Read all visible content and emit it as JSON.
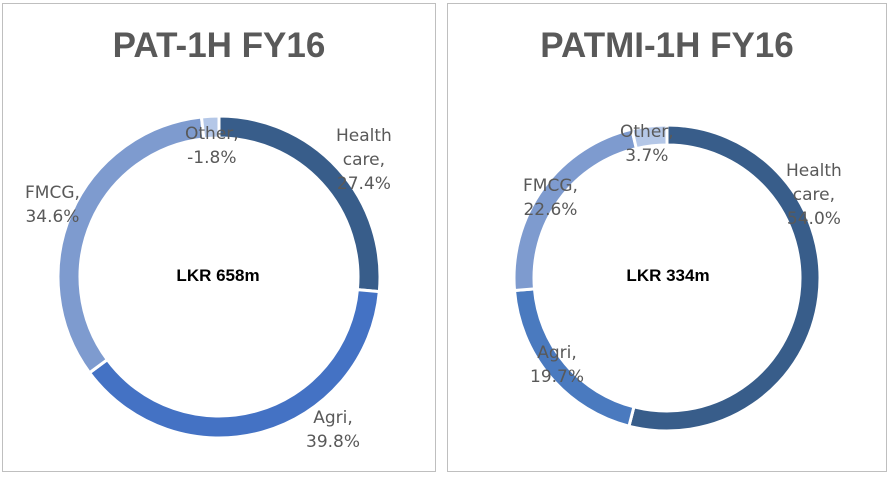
{
  "chart_data": [
    {
      "type": "donut",
      "title": "PAT-1H FY16",
      "center_label": "LKR 658m",
      "slices": [
        {
          "name": "Health care",
          "value": 27.4,
          "label_lines": [
            "Health",
            "care,",
            "27.4%"
          ],
          "color": "#385d8a"
        },
        {
          "name": "Agri",
          "value": 39.8,
          "label_lines": [
            "Agri,",
            "39.8%"
          ],
          "color": "#4472c4"
        },
        {
          "name": "FMCG",
          "value": 34.6,
          "label_lines": [
            "FMCG,",
            "34.6%"
          ],
          "color": "#7e9bcf"
        },
        {
          "name": "Other",
          "value": -1.8,
          "label_lines": [
            "Other,",
            "-1.8%"
          ],
          "color": "#b4c7e7"
        }
      ]
    },
    {
      "type": "donut",
      "title": "PATMI-1H FY16",
      "center_label": "LKR 334m",
      "slices": [
        {
          "name": "Health care",
          "value": 54.0,
          "label_lines": [
            "Health",
            "care,",
            "54.0%"
          ],
          "color": "#385d8a"
        },
        {
          "name": "Agri",
          "value": 19.7,
          "label_lines": [
            "Agri,",
            "19.7%"
          ],
          "color": "#4a7abf"
        },
        {
          "name": "FMCG",
          "value": 22.6,
          "label_lines": [
            "FMCG,",
            "22.6%"
          ],
          "color": "#7e9bcf"
        },
        {
          "name": "Other",
          "value": 3.7,
          "label_lines": [
            "Other,",
            "3.7%"
          ],
          "color": "#b4c7e7"
        }
      ]
    }
  ]
}
